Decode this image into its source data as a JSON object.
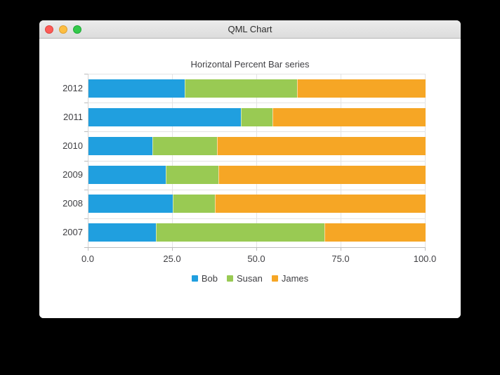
{
  "window": {
    "title": "QML Chart",
    "controls": {
      "close": "close-window",
      "minimize": "minimize-window",
      "zoom": "zoom-window"
    }
  },
  "chart_data": {
    "type": "bar",
    "variant": "horizontal-percent-stacked",
    "title": "Horizontal Percent Bar series",
    "categories": [
      "2012",
      "2011",
      "2010",
      "2009",
      "2008",
      "2007"
    ],
    "series": [
      {
        "name": "Bob",
        "color": "#209fdf",
        "values": [
          6,
          5,
          4,
          3,
          2,
          2
        ]
      },
      {
        "name": "Susan",
        "color": "#99ca53",
        "values": [
          7,
          1,
          4,
          2,
          1,
          5
        ]
      },
      {
        "name": "James",
        "color": "#f6a625",
        "values": [
          8,
          5,
          13,
          8,
          5,
          3
        ]
      }
    ],
    "percent_by_category": [
      {
        "category": "2012",
        "Bob": 28.6,
        "Susan": 33.3,
        "James": 38.1
      },
      {
        "category": "2011",
        "Bob": 45.5,
        "Susan": 9.1,
        "James": 45.5
      },
      {
        "category": "2010",
        "Bob": 19.0,
        "Susan": 19.0,
        "James": 61.9
      },
      {
        "category": "2009",
        "Bob": 23.1,
        "Susan": 15.4,
        "James": 61.5
      },
      {
        "category": "2008",
        "Bob": 25.0,
        "Susan": 12.5,
        "James": 62.5
      },
      {
        "category": "2007",
        "Bob": 20.0,
        "Susan": 50.0,
        "James": 30.0
      }
    ],
    "x_axis": {
      "ticks": [
        "0.0",
        "25.0",
        "50.0",
        "75.0",
        "100.0"
      ],
      "min": 0,
      "max": 100
    },
    "legend": {
      "position": "bottom",
      "entries": [
        "Bob",
        "Susan",
        "James"
      ]
    },
    "grid": true
  }
}
